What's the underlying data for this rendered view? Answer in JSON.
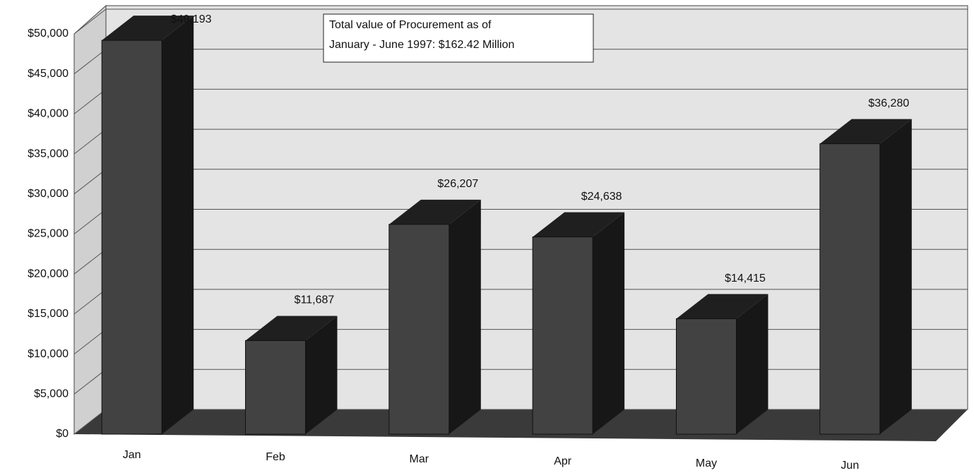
{
  "chart_data": {
    "type": "bar3d",
    "annotation": [
      "Total value of Procurement as of",
      "January - June 1997:  $162.42 Million"
    ],
    "categories": [
      "Jan",
      "Feb",
      "Mar",
      "Apr",
      "May",
      "Jun"
    ],
    "values": [
      49193,
      11687,
      26207,
      24638,
      14415,
      36280
    ],
    "value_labels": [
      "$49,193",
      "$11,687",
      "$26,207",
      "$24,638",
      "$14,415",
      "$36,280"
    ],
    "color": "#333333",
    "ylim": [
      0,
      50000
    ],
    "yticks": [
      {
        "value": 0,
        "label": "$0"
      },
      {
        "value": 5000,
        "label": "$5,000"
      },
      {
        "value": 10000,
        "label": "$10,000"
      },
      {
        "value": 15000,
        "label": "$15,000"
      },
      {
        "value": 20000,
        "label": "$20,000"
      },
      {
        "value": 25000,
        "label": "$25,000"
      },
      {
        "value": 30000,
        "label": "$30,000"
      },
      {
        "value": 35000,
        "label": "$35,000"
      },
      {
        "value": 40000,
        "label": "$40,000"
      },
      {
        "value": 45000,
        "label": "$45,000"
      },
      {
        "value": 50000,
        "label": "$50,000"
      }
    ],
    "grid": true
  }
}
